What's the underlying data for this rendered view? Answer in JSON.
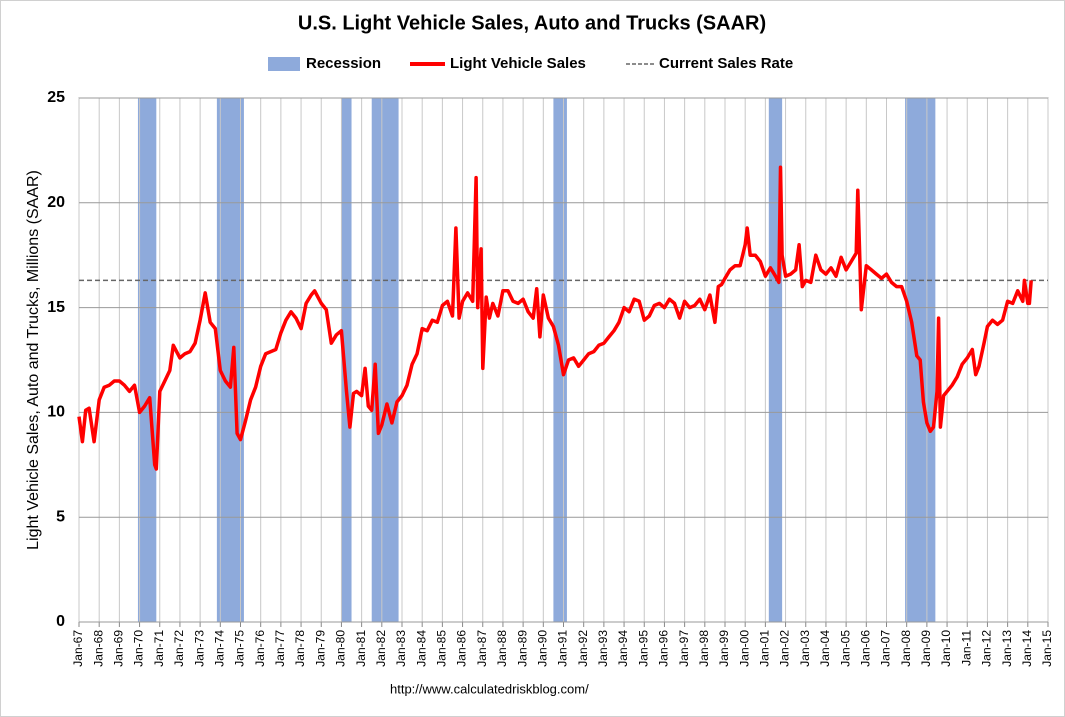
{
  "chart_data": {
    "type": "line",
    "title": "U.S. Light Vehicle Sales, Auto and Trucks (SAAR)",
    "ylabel": "Light Vehicle Sales, Auto and Trucks, Millions (SAAR)",
    "source": "http://www.calculatedriskblog.com/",
    "xlim": [
      1967,
      2015
    ],
    "ylim": [
      0,
      25
    ],
    "yticks": [
      0,
      5,
      10,
      15,
      20,
      25
    ],
    "xticks": [
      {
        "value": 1967,
        "label": "Jan-67"
      },
      {
        "value": 1968,
        "label": "Jan-68"
      },
      {
        "value": 1969,
        "label": "Jan-69"
      },
      {
        "value": 1970,
        "label": "Jan-70"
      },
      {
        "value": 1971,
        "label": "Jan-71"
      },
      {
        "value": 1972,
        "label": "Jan-72"
      },
      {
        "value": 1973,
        "label": "Jan-73"
      },
      {
        "value": 1974,
        "label": "Jan-74"
      },
      {
        "value": 1975,
        "label": "Jan-75"
      },
      {
        "value": 1976,
        "label": "Jan-76"
      },
      {
        "value": 1977,
        "label": "Jan-77"
      },
      {
        "value": 1978,
        "label": "Jan-78"
      },
      {
        "value": 1979,
        "label": "Jan-79"
      },
      {
        "value": 1980,
        "label": "Jan-80"
      },
      {
        "value": 1981,
        "label": "Jan-81"
      },
      {
        "value": 1982,
        "label": "Jan-82"
      },
      {
        "value": 1983,
        "label": "Jan-83"
      },
      {
        "value": 1984,
        "label": "Jan-84"
      },
      {
        "value": 1985,
        "label": "Jan-85"
      },
      {
        "value": 1986,
        "label": "Jan-86"
      },
      {
        "value": 1987,
        "label": "Jan-87"
      },
      {
        "value": 1988,
        "label": "Jan-88"
      },
      {
        "value": 1989,
        "label": "Jan-89"
      },
      {
        "value": 1990,
        "label": "Jan-90"
      },
      {
        "value": 1991,
        "label": "Jan-91"
      },
      {
        "value": 1992,
        "label": "Jan-92"
      },
      {
        "value": 1993,
        "label": "Jan-93"
      },
      {
        "value": 1994,
        "label": "Jan-94"
      },
      {
        "value": 1995,
        "label": "Jan-95"
      },
      {
        "value": 1996,
        "label": "Jan-96"
      },
      {
        "value": 1997,
        "label": "Jan-97"
      },
      {
        "value": 1998,
        "label": "Jan-98"
      },
      {
        "value": 1999,
        "label": "Jan-99"
      },
      {
        "value": 2000,
        "label": "Jan-00"
      },
      {
        "value": 2001,
        "label": "Jan-01"
      },
      {
        "value": 2002,
        "label": "Jan-02"
      },
      {
        "value": 2003,
        "label": "Jan-03"
      },
      {
        "value": 2004,
        "label": "Jan-04"
      },
      {
        "value": 2005,
        "label": "Jan-05"
      },
      {
        "value": 2006,
        "label": "Jan-06"
      },
      {
        "value": 2007,
        "label": "Jan-07"
      },
      {
        "value": 2008,
        "label": "Jan-08"
      },
      {
        "value": 2009,
        "label": "Jan-09"
      },
      {
        "value": 2010,
        "label": "Jan-10"
      },
      {
        "value": 2011,
        "label": "Jan-11"
      },
      {
        "value": 2012,
        "label": "Jan-12"
      },
      {
        "value": 2013,
        "label": "Jan-13"
      },
      {
        "value": 2014,
        "label": "Jan-14"
      },
      {
        "value": 2015,
        "label": "Jan-15"
      }
    ],
    "grid": true,
    "recessions": {
      "name": "Recession",
      "color": "#8eaadb",
      "bands": [
        [
          1969.92,
          1970.83
        ],
        [
          1973.83,
          1975.17
        ],
        [
          1980.0,
          1980.5
        ],
        [
          1981.5,
          1982.83
        ],
        [
          1990.5,
          1991.17
        ],
        [
          2001.17,
          2001.83
        ],
        [
          2007.92,
          2009.42
        ]
      ]
    },
    "reference": {
      "name": "Current Sales Rate",
      "value": 16.3,
      "color": "#666666"
    },
    "x": [
      1967.0,
      1967.17,
      1967.33,
      1967.5,
      1967.75,
      1968.0,
      1968.25,
      1968.5,
      1968.75,
      1969.0,
      1969.25,
      1969.5,
      1969.75,
      1970.0,
      1970.25,
      1970.5,
      1970.75,
      1970.83,
      1971.0,
      1971.25,
      1971.5,
      1971.67,
      1972.0,
      1972.25,
      1972.5,
      1972.75,
      1973.0,
      1973.25,
      1973.5,
      1973.75,
      1974.0,
      1974.25,
      1974.5,
      1974.67,
      1974.83,
      1975.0,
      1975.25,
      1975.5,
      1975.75,
      1976.0,
      1976.25,
      1976.5,
      1976.75,
      1977.0,
      1977.25,
      1977.5,
      1977.75,
      1978.0,
      1978.25,
      1978.5,
      1978.67,
      1979.0,
      1979.25,
      1979.5,
      1979.75,
      1980.0,
      1980.25,
      1980.42,
      1980.6,
      1980.75,
      1981.0,
      1981.17,
      1981.33,
      1981.5,
      1981.67,
      1981.83,
      1982.0,
      1982.25,
      1982.5,
      1982.75,
      1983.0,
      1983.25,
      1983.5,
      1983.75,
      1984.0,
      1984.25,
      1984.5,
      1984.75,
      1985.0,
      1985.25,
      1985.5,
      1985.67,
      1985.83,
      1986.0,
      1986.25,
      1986.5,
      1986.67,
      1986.75,
      1986.92,
      1987.0,
      1987.17,
      1987.33,
      1987.5,
      1987.75,
      1988.0,
      1988.25,
      1988.5,
      1988.75,
      1989.0,
      1989.25,
      1989.5,
      1989.67,
      1989.83,
      1990.0,
      1990.25,
      1990.5,
      1990.75,
      1991.0,
      1991.25,
      1991.5,
      1991.75,
      1992.0,
      1992.25,
      1992.5,
      1992.75,
      1993.0,
      1993.25,
      1993.5,
      1993.75,
      1994.0,
      1994.25,
      1994.5,
      1994.75,
      1995.0,
      1995.25,
      1995.5,
      1995.75,
      1996.0,
      1996.25,
      1996.5,
      1996.75,
      1997.0,
      1997.25,
      1997.5,
      1997.75,
      1998.0,
      1998.25,
      1998.5,
      1998.67,
      1998.83,
      1999.0,
      1999.25,
      1999.5,
      1999.75,
      2000.0,
      2000.1,
      2000.25,
      2000.5,
      2000.75,
      2001.0,
      2001.25,
      2001.5,
      2001.67,
      2001.75,
      2001.83,
      2002.0,
      2002.25,
      2002.5,
      2002.67,
      2002.83,
      2003.0,
      2003.25,
      2003.5,
      2003.75,
      2004.0,
      2004.25,
      2004.5,
      2004.75,
      2005.0,
      2005.25,
      2005.5,
      2005.58,
      2005.75,
      2006.0,
      2006.25,
      2006.5,
      2006.75,
      2007.0,
      2007.25,
      2007.5,
      2007.75,
      2008.0,
      2008.25,
      2008.5,
      2008.67,
      2008.83,
      2009.0,
      2009.17,
      2009.33,
      2009.5,
      2009.58,
      2009.67,
      2009.83,
      2010.0,
      2010.25,
      2010.5,
      2010.75,
      2011.0,
      2011.25,
      2011.42,
      2011.58,
      2011.83,
      2012.0,
      2012.25,
      2012.5,
      2012.75,
      2013.0,
      2013.25,
      2013.5,
      2013.75,
      2013.83,
      2014.0,
      2014.08,
      2014.17
    ],
    "series": [
      {
        "name": "Light Vehicle Sales",
        "color": "#ff0000",
        "values": [
          9.8,
          8.6,
          10.1,
          10.2,
          8.6,
          10.6,
          11.2,
          11.3,
          11.5,
          11.5,
          11.3,
          11.0,
          11.3,
          10.0,
          10.3,
          10.7,
          7.5,
          7.3,
          11.0,
          11.5,
          12.0,
          13.2,
          12.6,
          12.8,
          12.9,
          13.3,
          14.4,
          15.7,
          14.3,
          14.0,
          12.0,
          11.5,
          11.2,
          13.1,
          9.0,
          8.7,
          9.6,
          10.6,
          11.2,
          12.2,
          12.8,
          12.9,
          13.0,
          13.8,
          14.4,
          14.8,
          14.5,
          14.0,
          15.2,
          15.6,
          15.8,
          15.2,
          14.9,
          13.3,
          13.7,
          13.9,
          11.0,
          9.3,
          10.9,
          11.0,
          10.8,
          12.1,
          10.3,
          10.1,
          12.3,
          9.0,
          9.4,
          10.4,
          9.5,
          10.5,
          10.8,
          11.3,
          12.3,
          12.8,
          14.0,
          13.9,
          14.4,
          14.3,
          15.1,
          15.3,
          14.6,
          18.8,
          14.5,
          15.3,
          15.7,
          15.3,
          21.2,
          15.0,
          17.8,
          12.1,
          15.5,
          14.5,
          15.2,
          14.6,
          15.8,
          15.8,
          15.3,
          15.2,
          15.4,
          14.8,
          14.5,
          15.9,
          13.6,
          15.6,
          14.5,
          14.1,
          13.2,
          11.8,
          12.5,
          12.6,
          12.2,
          12.5,
          12.8,
          12.9,
          13.2,
          13.3,
          13.6,
          13.9,
          14.3,
          15.0,
          14.8,
          15.4,
          15.3,
          14.4,
          14.6,
          15.1,
          15.2,
          15.0,
          15.4,
          15.2,
          14.5,
          15.3,
          15.0,
          15.1,
          15.4,
          14.9,
          15.6,
          14.3,
          16.0,
          16.1,
          16.4,
          16.8,
          17.0,
          17.0,
          18.0,
          18.8,
          17.5,
          17.5,
          17.2,
          16.5,
          16.9,
          16.5,
          16.2,
          21.7,
          17.5,
          16.5,
          16.6,
          16.8,
          18.0,
          16.0,
          16.3,
          16.2,
          17.5,
          16.8,
          16.6,
          16.9,
          16.5,
          17.4,
          16.8,
          17.2,
          17.6,
          20.6,
          14.9,
          17.0,
          16.8,
          16.6,
          16.4,
          16.6,
          16.2,
          16.0,
          16.0,
          15.3,
          14.3,
          12.7,
          12.5,
          10.5,
          9.5,
          9.1,
          9.3,
          11.0,
          14.5,
          9.3,
          10.8,
          11.0,
          11.3,
          11.7,
          12.3,
          12.6,
          13.0,
          11.8,
          12.2,
          13.3,
          14.1,
          14.4,
          14.2,
          14.4,
          15.3,
          15.2,
          15.8,
          15.3,
          16.3,
          15.2,
          15.2,
          16.3
        ]
      }
    ]
  }
}
